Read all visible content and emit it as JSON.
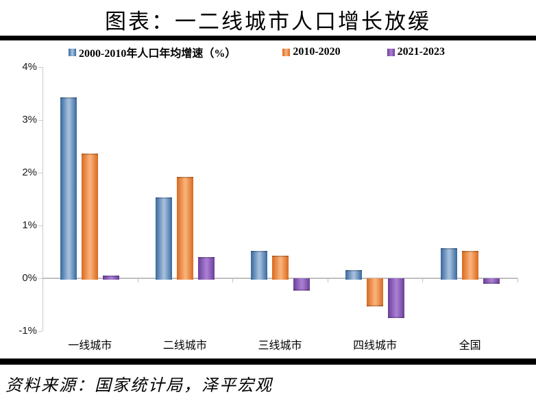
{
  "title": "图表：一二线城市人口增长放缓",
  "source": "资料来源：国家统计局，泽平宏观",
  "colors": {
    "series": [
      {
        "edge": "#38689E",
        "center": "#A3BEDC"
      },
      {
        "edge": "#D9691F",
        "center": "#F9B078"
      },
      {
        "edge": "#6B3F99",
        "center": "#A87DD2"
      }
    ],
    "axis": "#BFBFBF",
    "rule": "#000000",
    "text": "#000000"
  },
  "chart_data": {
    "type": "bar",
    "title": "图表：一二线城市人口增长放缓",
    "categories": [
      "一线城市",
      "二线城市",
      "三线城市",
      "四线城市",
      "全国"
    ],
    "series": [
      {
        "name": "2000-2010年人口年均增速（%）",
        "values": [
          3.43,
          1.53,
          0.52,
          0.16,
          0.57
        ]
      },
      {
        "name": "2010-2020",
        "values": [
          2.37,
          1.92,
          0.43,
          -0.5,
          0.52
        ]
      },
      {
        "name": "2021-2023",
        "values": [
          0.05,
          0.4,
          -0.21,
          -0.73,
          -0.08
        ]
      }
    ],
    "ylim": [
      -1,
      4
    ],
    "yticks": [
      {
        "value": 4,
        "label": "4%"
      },
      {
        "value": 3,
        "label": "3%"
      },
      {
        "value": 2,
        "label": "2%"
      },
      {
        "value": 1,
        "label": "1%"
      },
      {
        "value": 0,
        "label": "0%"
      },
      {
        "value": -1,
        "label": "-1%"
      }
    ],
    "grid": false,
    "legend_position": "top"
  }
}
